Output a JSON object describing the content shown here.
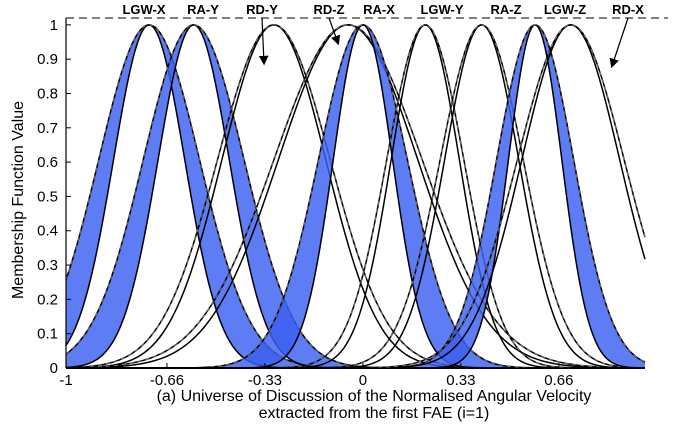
{
  "chart_data": {
    "type": "line",
    "subtype": "interval type-2 gaussian membership functions",
    "ylabel": "Membership Function Value",
    "xlabel_lines": [
      "(a) Universe of Discussion of the Normalised Angular Velocity",
      "extracted from the first FAE (i=1)"
    ],
    "xlim": [
      -1,
      0.95
    ],
    "ylim": [
      0,
      1.02
    ],
    "x_ticks": [
      {
        "value": -1,
        "label": "-1"
      },
      {
        "value": -0.66,
        "label": "-0.66"
      },
      {
        "value": -0.33,
        "label": "-0.33"
      },
      {
        "value": 0,
        "label": "0"
      },
      {
        "value": 0.33,
        "label": "0.33"
      },
      {
        "value": 0.66,
        "label": "0.66"
      }
    ],
    "y_ticks": [
      {
        "value": 0,
        "label": "0"
      },
      {
        "value": 0.1,
        "label": "0.1"
      },
      {
        "value": 0.2,
        "label": "0.2"
      },
      {
        "value": 0.3,
        "label": "0.3"
      },
      {
        "value": 0.4,
        "label": "0.4"
      },
      {
        "value": 0.5,
        "label": "0.5"
      },
      {
        "value": 0.6,
        "label": "0.6"
      },
      {
        "value": 0.7,
        "label": "0.7"
      },
      {
        "value": 0.8,
        "label": "0.8"
      },
      {
        "value": 0.9,
        "label": "0.9"
      },
      {
        "value": 1,
        "label": "1"
      }
    ],
    "reference_line_y": 1.02,
    "fill_color": "#3b5ff0",
    "line_color": "#000000",
    "series": [
      {
        "name": "LGW-X",
        "center": -0.72,
        "sigma_upper": 0.17,
        "sigma_lower": 0.12,
        "style": "fill"
      },
      {
        "name": "RA-Y",
        "center": -0.57,
        "sigma_upper": 0.17,
        "sigma_lower": 0.12,
        "style": "fill"
      },
      {
        "name": "RD-Y",
        "center": -0.3,
        "sigma_upper": 0.19,
        "sigma_lower": 0.175,
        "style": "line"
      },
      {
        "name": "RD-Z",
        "center": -0.05,
        "sigma_upper": 0.25,
        "sigma_lower": 0.235,
        "style": "line"
      },
      {
        "name": "RA-X",
        "center": 0.0,
        "sigma_upper": 0.15,
        "sigma_lower": 0.1,
        "style": "fill"
      },
      {
        "name": "LGW-Y",
        "center": 0.21,
        "sigma_upper": 0.13,
        "sigma_lower": 0.115,
        "style": "line"
      },
      {
        "name": "RA-Z",
        "center": 0.4,
        "sigma_upper": 0.14,
        "sigma_lower": 0.125,
        "style": "line"
      },
      {
        "name": "LGW-Z",
        "center": 0.58,
        "sigma_upper": 0.13,
        "sigma_lower": 0.09,
        "style": "fill"
      },
      {
        "name": "RD-X",
        "center": 0.7,
        "sigma_upper": 0.18,
        "sigma_lower": 0.165,
        "style": "line"
      }
    ],
    "annotations": [
      {
        "text": "LGW-X",
        "target": "LGW-X"
      },
      {
        "text": "RA-Y",
        "target": "RA-Y"
      },
      {
        "text": "RD-Y",
        "target": "RD-Y"
      },
      {
        "text": "RD-Z",
        "target": "RD-Z"
      },
      {
        "text": "RA-X",
        "target": "RA-X"
      },
      {
        "text": "LGW-Y",
        "target": "LGW-Y"
      },
      {
        "text": "RA-Z",
        "target": "RA-Z"
      },
      {
        "text": "LGW-Z",
        "target": "LGW-Z"
      },
      {
        "text": "RD-X",
        "target": "RD-X"
      }
    ]
  }
}
